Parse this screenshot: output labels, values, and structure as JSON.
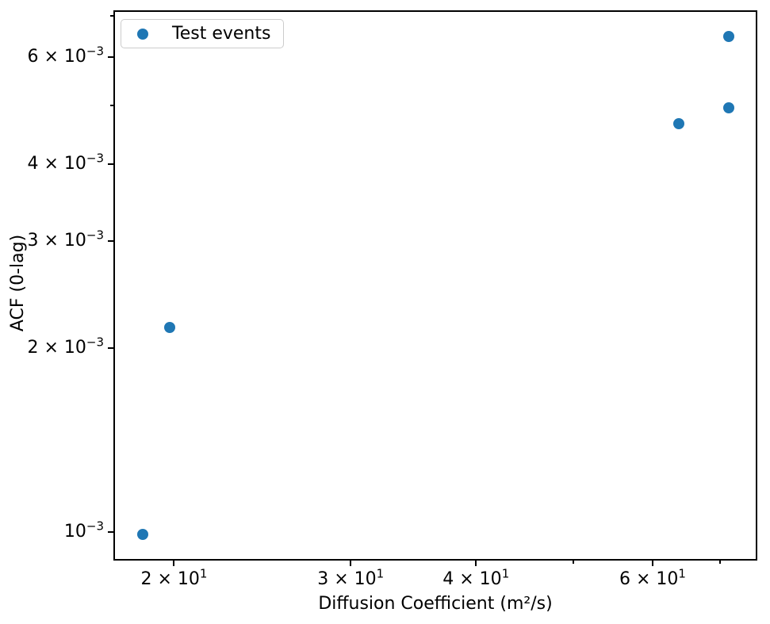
{
  "chart_data": {
    "type": "scatter",
    "title": "",
    "xlabel": "Diffusion Coefficient (m²/s)",
    "ylabel": "ACF (0-lag)",
    "xscale": "log",
    "yscale": "log",
    "xlim": [
      17.4,
      76.3
    ],
    "ylim": [
      0.000898,
      0.00715
    ],
    "grid": false,
    "legend_position": "upper left",
    "legend": [
      {
        "label": "Test events",
        "color": "#1f77b4"
      }
    ],
    "series": [
      {
        "name": "Test events",
        "color": "#1f77b4",
        "points": [
          {
            "x": 18.6,
            "y": 0.00099
          },
          {
            "x": 19.8,
            "y": 0.00216
          },
          {
            "x": 63.7,
            "y": 0.00466
          },
          {
            "x": 71.4,
            "y": 0.00495
          },
          {
            "x": 71.4,
            "y": 0.00647
          }
        ]
      }
    ],
    "x_ticks": [
      {
        "v": 20,
        "base": "2 × 10",
        "sup": "1"
      },
      {
        "v": 30,
        "base": "3 × 10",
        "sup": "1"
      },
      {
        "v": 40,
        "base": "4 × 10",
        "sup": "1"
      },
      {
        "v": 50,
        "minor": true
      },
      {
        "v": 60,
        "base": "6 × 10",
        "sup": "1"
      },
      {
        "v": 70,
        "minor": true
      }
    ],
    "y_ticks": [
      {
        "v": 0.007,
        "minor": true
      },
      {
        "v": 0.006,
        "base": "6 × 10",
        "sup": "−3"
      },
      {
        "v": 0.005,
        "minor": true
      },
      {
        "v": 0.004,
        "base": "4 × 10",
        "sup": "−3"
      },
      {
        "v": 0.003,
        "base": "3 × 10",
        "sup": "−3"
      },
      {
        "v": 0.002,
        "base": "2 × 10",
        "sup": "−3"
      },
      {
        "v": 0.001,
        "base": "10",
        "sup": "−3"
      }
    ]
  }
}
